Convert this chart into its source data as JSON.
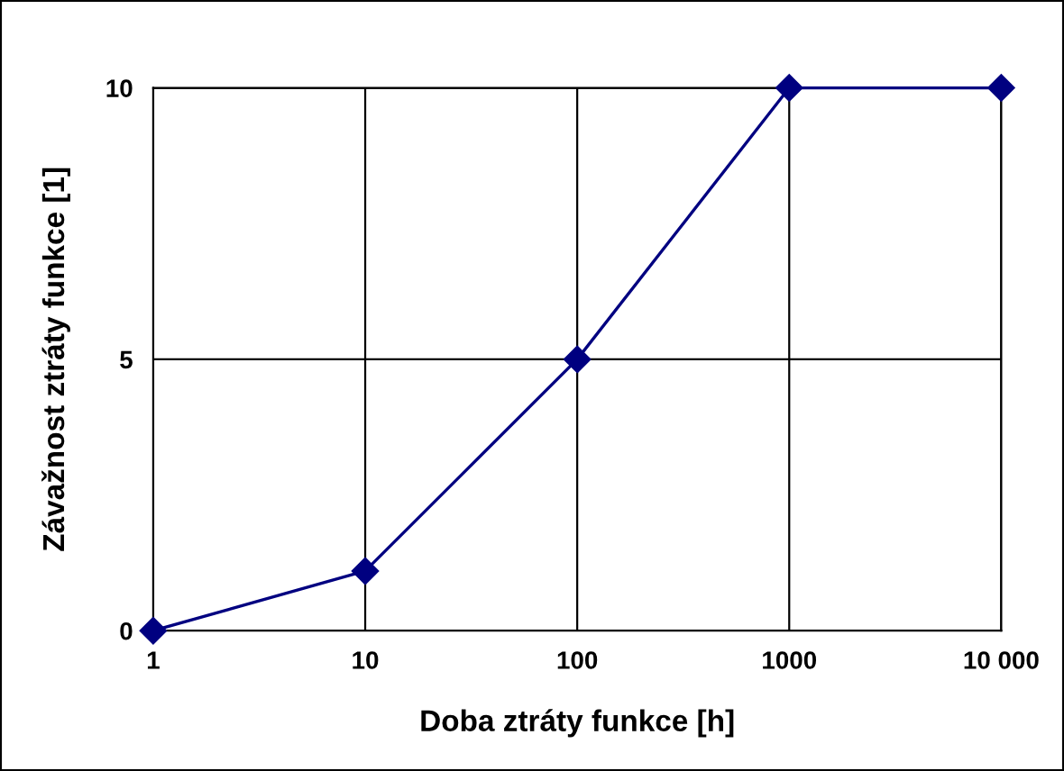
{
  "chart_data": {
    "type": "line",
    "xlabel": "Doba ztráty funkce [h]",
    "ylabel": "Závažnost ztráty funkce [1]",
    "x": [
      1,
      10,
      100,
      1000,
      10000
    ],
    "series": [
      {
        "color": "#000080",
        "values": [
          0,
          1.1,
          5,
          10,
          10
        ]
      }
    ],
    "log": "x",
    "xlim": [
      1,
      10000
    ],
    "xticks": [
      1,
      10,
      100,
      1000,
      {
        "value": 10000,
        "label": "10 000"
      }
    ],
    "ylim": [
      0,
      10
    ],
    "yticks": [
      0,
      5,
      10
    ],
    "grid": true,
    "marker": "diamond",
    "line_style": "solid",
    "legend": false
  }
}
